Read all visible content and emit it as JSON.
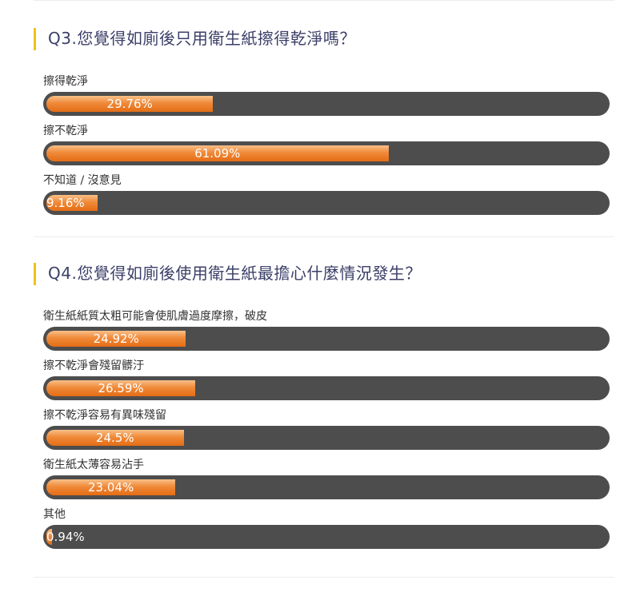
{
  "chart_data": [
    {
      "type": "bar",
      "title": "Q3.您覺得如廁後只用衛生紙擦得乾淨嗎？",
      "categories": [
        "擦得乾淨",
        "擦不乾淨",
        "不知道 / 沒意見"
      ],
      "values": [
        29.76,
        61.09,
        9.16
      ],
      "value_labels": [
        "29.76%",
        "61.09%",
        "9.16%"
      ],
      "ylim": [
        0,
        100
      ]
    },
    {
      "type": "bar",
      "title": "Q4.您覺得如廁後使用衛生紙最擔心什麼情況發生？",
      "categories": [
        "衛生紙紙質太粗可能會使肌膚過度摩擦，破皮",
        "擦不乾淨會殘留髒汙",
        "擦不乾淨容易有異味殘留",
        "衛生紙太薄容易沾手",
        "其他"
      ],
      "values": [
        24.92,
        26.59,
        24.5,
        23.04,
        0.94
      ],
      "value_labels": [
        "24.92%",
        "26.59%",
        "24.5%",
        "23.04%",
        "0.94%"
      ],
      "ylim": [
        0,
        100
      ]
    }
  ],
  "colors": {
    "title_text": "#3b3f68",
    "title_accent": "#f3c21a",
    "track": "#4d4d4d",
    "fill": "#f08a3a"
  }
}
